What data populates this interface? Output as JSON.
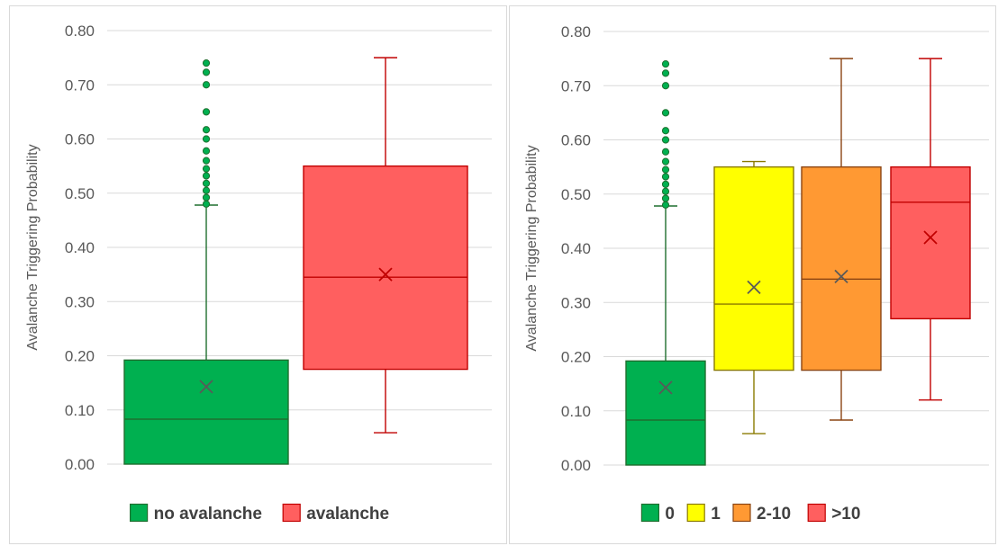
{
  "chart_data": [
    {
      "type": "box",
      "ylabel": "Avalanche Triggering Probability",
      "ylim": [
        0,
        0.8
      ],
      "yticks": [
        "0.00",
        "0.10",
        "0.20",
        "0.30",
        "0.40",
        "0.50",
        "0.60",
        "0.70",
        "0.80"
      ],
      "grid": true,
      "legend_position": "bottom",
      "series": [
        {
          "name": "no avalanche",
          "color": "#00b050",
          "stroke": "#1f6f2f",
          "min": 0.0,
          "q1": 0.0,
          "median": 0.083,
          "q3": 0.192,
          "max": 0.478,
          "mean": 0.143,
          "outliers": [
            0.48,
            0.492,
            0.505,
            0.518,
            0.532,
            0.545,
            0.56,
            0.578,
            0.6,
            0.617,
            0.65,
            0.7,
            0.723,
            0.74
          ]
        },
        {
          "name": "avalanche",
          "color": "#ff5f5f",
          "stroke": "#c00000",
          "min": 0.058,
          "q1": 0.175,
          "median": 0.345,
          "q3": 0.55,
          "max": 0.75,
          "mean": 0.35,
          "outliers": []
        }
      ]
    },
    {
      "type": "box",
      "ylabel": "Avalanche Triggering Probability",
      "ylim": [
        0,
        0.8
      ],
      "yticks": [
        "0.00",
        "0.10",
        "0.20",
        "0.30",
        "0.40",
        "0.50",
        "0.60",
        "0.70",
        "0.80"
      ],
      "grid": true,
      "legend_position": "bottom",
      "series": [
        {
          "name": "0",
          "color": "#00b050",
          "stroke": "#1f6f2f",
          "min": 0.0,
          "q1": 0.0,
          "median": 0.083,
          "q3": 0.192,
          "max": 0.478,
          "mean": 0.143,
          "outliers": [
            0.48,
            0.492,
            0.505,
            0.518,
            0.532,
            0.545,
            0.56,
            0.578,
            0.6,
            0.617,
            0.65,
            0.7,
            0.723,
            0.74
          ]
        },
        {
          "name": "1",
          "color": "#ffff00",
          "stroke": "#8a7a00",
          "min": 0.058,
          "q1": 0.175,
          "median": 0.297,
          "q3": 0.55,
          "max": 0.56,
          "mean": 0.328,
          "outliers": []
        },
        {
          "name": "2-10",
          "color": "#ff9933",
          "stroke": "#8b4513",
          "min": 0.083,
          "q1": 0.175,
          "median": 0.343,
          "q3": 0.55,
          "max": 0.75,
          "mean": 0.348,
          "outliers": []
        },
        {
          "name": ">10",
          "color": "#ff5f5f",
          "stroke": "#c00000",
          "min": 0.12,
          "q1": 0.27,
          "median": 0.485,
          "q3": 0.55,
          "max": 0.75,
          "mean": 0.42,
          "outliers": []
        }
      ]
    }
  ]
}
